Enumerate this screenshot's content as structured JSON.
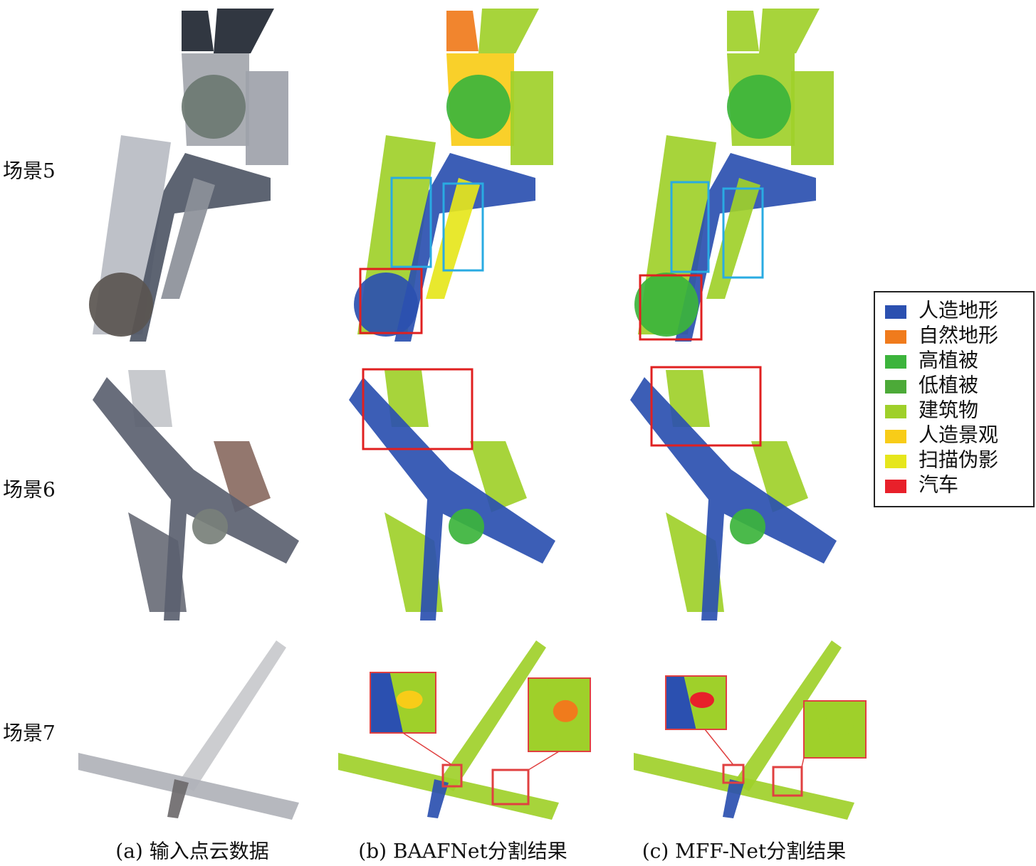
{
  "rows": [
    {
      "label": "场景5"
    },
    {
      "label": "场景6"
    },
    {
      "label": "场景7"
    }
  ],
  "columns": [
    {
      "caption": "(a) 输入点云数据"
    },
    {
      "caption": "(b) BAAFNet分割结果"
    },
    {
      "caption": "(c) MFF-Net分割结果"
    }
  ],
  "legend": {
    "items": [
      {
        "label": "人造地形",
        "color": "#2b50b0"
      },
      {
        "label": "自然地形",
        "color": "#f07b1c"
      },
      {
        "label": "高植被",
        "color": "#3cb43c"
      },
      {
        "label": "低植被",
        "color": "#4caa38"
      },
      {
        "label": "建筑物",
        "color": "#9fd02a"
      },
      {
        "label": "人造景观",
        "color": "#f8cc18"
      },
      {
        "label": "扫描伪影",
        "color": "#e6e61c"
      },
      {
        "label": "汽车",
        "color": "#e8202a"
      }
    ]
  }
}
